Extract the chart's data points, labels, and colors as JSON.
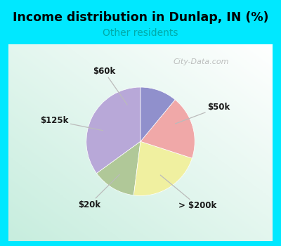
{
  "title": "Income distribution in Dunlap, IN (%)",
  "subtitle": "Other residents",
  "title_color": "#000000",
  "subtitle_color": "#00aaaa",
  "bg_cyan": "#00e8ff",
  "chart_bg_colors": [
    "#c8eedd",
    "#ffffff"
  ],
  "slices": [
    {
      "label": "$50k",
      "value": 35,
      "color": "#b8a8d8"
    },
    {
      "label": "> $200k",
      "value": 13,
      "color": "#b0c898"
    },
    {
      "label": "$20k",
      "value": 22,
      "color": "#f0f0a0"
    },
    {
      "label": "$125k",
      "value": 19,
      "color": "#f0a8a8"
    },
    {
      "label": "$60k",
      "value": 11,
      "color": "#9090cc"
    }
  ],
  "startangle": 90,
  "figsize": [
    4.0,
    3.5
  ],
  "dpi": 100
}
